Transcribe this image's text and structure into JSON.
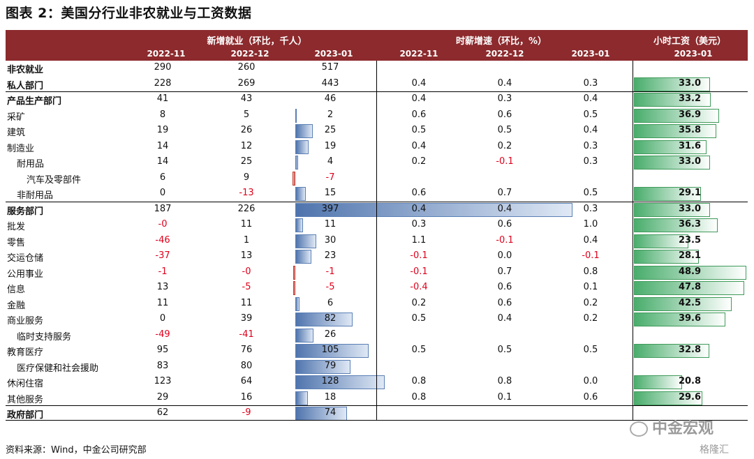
{
  "title": "图表 2：美国分行业非农就业与工资数据",
  "header": {
    "group_employment": "新增就业（环比，千人）",
    "group_wage_growth": "时薪增速（环比，%）",
    "group_hourly_wage": "小时工资（美元）",
    "cols": [
      "2022-11",
      "2022-12",
      "2023-01",
      "2022-11",
      "2022-12",
      "2023-01",
      "2023-01"
    ]
  },
  "rows": [
    {
      "label": "非农就业",
      "bold": true,
      "indent": 0,
      "emp": [
        "290",
        "260",
        "517"
      ],
      "wg": [
        "",
        "",
        ""
      ],
      "hw": ""
    },
    {
      "label": "私人部门",
      "bold": true,
      "indent": 0,
      "emp": [
        "228",
        "269",
        "443"
      ],
      "wg": [
        "0.4",
        "0.4",
        "0.3"
      ],
      "hw": "33.0"
    },
    {
      "label": "产品生产部门",
      "bold": true,
      "indent": 0,
      "emp": [
        "41",
        "43",
        "46"
      ],
      "wg": [
        "0.4",
        "0.3",
        "0.4"
      ],
      "hw": "33.2"
    },
    {
      "label": "采矿",
      "bold": false,
      "indent": 0,
      "emp": [
        "8",
        "5",
        "2"
      ],
      "wg": [
        "0.6",
        "0.6",
        "0.5"
      ],
      "hw": "36.9"
    },
    {
      "label": "建筑",
      "bold": false,
      "indent": 0,
      "emp": [
        "19",
        "26",
        "25"
      ],
      "wg": [
        "0.5",
        "0.5",
        "0.4"
      ],
      "hw": "35.8"
    },
    {
      "label": "制造业",
      "bold": false,
      "indent": 0,
      "emp": [
        "14",
        "12",
        "19"
      ],
      "wg": [
        "0.4",
        "0.2",
        "0.3"
      ],
      "hw": "31.6"
    },
    {
      "label": "耐用品",
      "bold": false,
      "indent": 1,
      "emp": [
        "14",
        "25",
        "4"
      ],
      "wg": [
        "0.2",
        "-0.1",
        "0.3"
      ],
      "hw": "33.0"
    },
    {
      "label": "汽车及零部件",
      "bold": false,
      "indent": 2,
      "emp": [
        "6",
        "9",
        "-7"
      ],
      "wg": [
        "",
        "",
        ""
      ],
      "hw": ""
    },
    {
      "label": "非耐用品",
      "bold": false,
      "indent": 1,
      "emp": [
        "0",
        "-13",
        "15"
      ],
      "wg": [
        "0.6",
        "0.7",
        "0.5"
      ],
      "hw": "29.1"
    },
    {
      "label": "服务部门",
      "bold": true,
      "indent": 0,
      "emp": [
        "187",
        "226",
        "397"
      ],
      "wg": [
        "0.4",
        "0.4",
        "0.3"
      ],
      "hw": "33.0"
    },
    {
      "label": "批发",
      "bold": false,
      "indent": 0,
      "emp": [
        "-0",
        "11",
        "11"
      ],
      "wg": [
        "0.3",
        "0.6",
        "1.0"
      ],
      "hw": "36.3"
    },
    {
      "label": "零售",
      "bold": false,
      "indent": 0,
      "emp": [
        "-46",
        "1",
        "30"
      ],
      "wg": [
        "1.1",
        "-0.1",
        "0.4"
      ],
      "hw": "23.5"
    },
    {
      "label": "交运仓储",
      "bold": false,
      "indent": 0,
      "emp": [
        "-37",
        "13",
        "23"
      ],
      "wg": [
        "-0.1",
        "0.0",
        "-0.1"
      ],
      "hw": "28.1"
    },
    {
      "label": "公用事业",
      "bold": false,
      "indent": 0,
      "emp": [
        "-1",
        "-0",
        "-1"
      ],
      "wg": [
        "-0.1",
        "0.7",
        "0.8"
      ],
      "hw": "48.9"
    },
    {
      "label": "信息",
      "bold": false,
      "indent": 0,
      "emp": [
        "13",
        "-5",
        "-5"
      ],
      "wg": [
        "-0.4",
        "0.6",
        "0.1"
      ],
      "hw": "47.8"
    },
    {
      "label": "金融",
      "bold": false,
      "indent": 0,
      "emp": [
        "11",
        "11",
        "6"
      ],
      "wg": [
        "0.2",
        "0.6",
        "0.2"
      ],
      "hw": "42.5"
    },
    {
      "label": "商业服务",
      "bold": false,
      "indent": 0,
      "emp": [
        "0",
        "39",
        "82"
      ],
      "wg": [
        "0.5",
        "0.4",
        "0.2"
      ],
      "hw": "39.6"
    },
    {
      "label": "临时支持服务",
      "bold": false,
      "indent": 1,
      "emp": [
        "-49",
        "-41",
        "26"
      ],
      "wg": [
        "",
        "",
        ""
      ],
      "hw": ""
    },
    {
      "label": "教育医疗",
      "bold": false,
      "indent": 0,
      "emp": [
        "95",
        "76",
        "105"
      ],
      "wg": [
        "0.5",
        "0.5",
        "0.5"
      ],
      "hw": "32.8"
    },
    {
      "label": "医疗保健和社会援助",
      "bold": false,
      "indent": 1,
      "emp": [
        "83",
        "80",
        "79"
      ],
      "wg": [
        "",
        "",
        ""
      ],
      "hw": ""
    },
    {
      "label": "休闲住宿",
      "bold": false,
      "indent": 0,
      "emp": [
        "123",
        "64",
        "128"
      ],
      "wg": [
        "0.8",
        "0.8",
        "0.0"
      ],
      "hw": "20.8"
    },
    {
      "label": "其他服务",
      "bold": false,
      "indent": 0,
      "emp": [
        "29",
        "16",
        "18"
      ],
      "wg": [
        "0.8",
        "0.1",
        "0.6"
      ],
      "hw": "29.6"
    },
    {
      "label": "政府部门",
      "bold": true,
      "indent": 0,
      "emp": [
        "62",
        "-9",
        "74"
      ],
      "wg": [
        "",
        "",
        ""
      ],
      "hw": ""
    }
  ],
  "source": "资料来源：Wind，中金公司研究部",
  "watermark": "中金宏观",
  "watermark2": "格隆汇"
}
